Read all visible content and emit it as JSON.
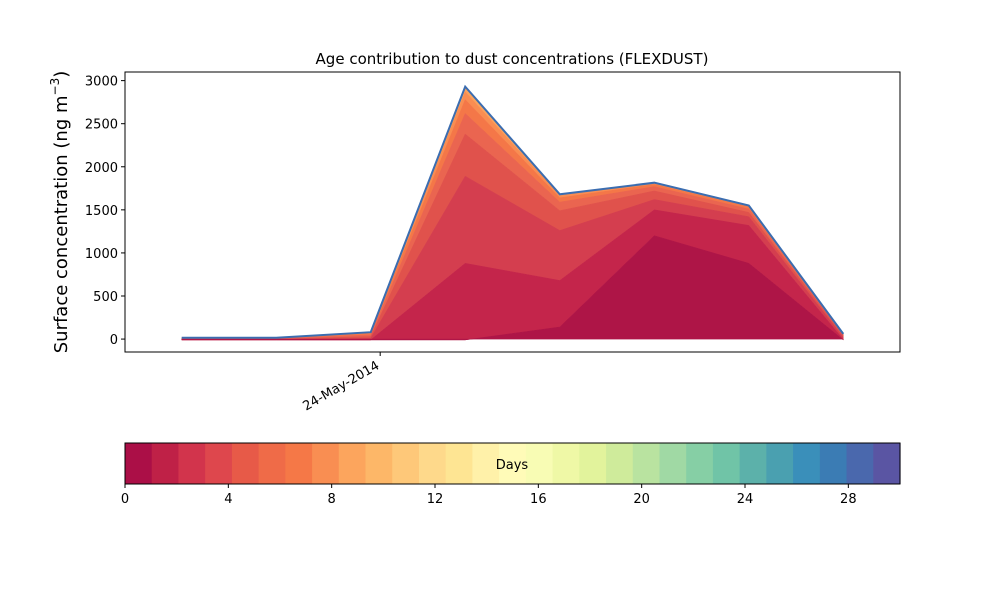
{
  "chart_data": {
    "type": "area",
    "title": "Age contribution to dust concentrations (FLEXDUST)",
    "ylabel_main": "Surface concentration (ng m",
    "ylabel_exp": "−3",
    "ylabel_close": ")",
    "xlabel": "",
    "ylim": [
      -150,
      3100
    ],
    "yticks": [
      0,
      500,
      1000,
      1500,
      2000,
      2500,
      3000
    ],
    "x_index_range": [
      -0.6,
      7.6
    ],
    "x_points": [
      0,
      1,
      2,
      3,
      4,
      5,
      6,
      7
    ],
    "xtick": {
      "label": "24-May-2014",
      "position": 2.1
    },
    "series_cumulative": [
      {
        "age_days": "0-1",
        "color": "#ae1547",
        "values": [
          -10,
          -10,
          -10,
          -10,
          140,
          1200,
          880,
          -10
        ]
      },
      {
        "age_days": "1-2",
        "color": "#c4254b",
        "values": [
          -10,
          -10,
          -10,
          880,
          680,
          1500,
          1320,
          -5
        ]
      },
      {
        "age_days": "2-3",
        "color": "#d43e4f",
        "values": [
          -5,
          -5,
          10,
          1890,
          1260,
          1620,
          1420,
          20
        ]
      },
      {
        "age_days": "3-4",
        "color": "#e0524c",
        "values": [
          0,
          0,
          30,
          2380,
          1490,
          1720,
          1470,
          40
        ]
      },
      {
        "age_days": "4-5",
        "color": "#ea6550",
        "values": [
          5,
          5,
          50,
          2620,
          1590,
          1770,
          1510,
          50
        ]
      },
      {
        "age_days": "5-6",
        "color": "#f47748",
        "values": [
          10,
          10,
          65,
          2780,
          1640,
          1795,
          1535,
          55
        ]
      },
      {
        "age_days": "6-7",
        "color": "#f98d52",
        "values": [
          12,
          12,
          72,
          2870,
          1665,
          1805,
          1545,
          58
        ]
      },
      {
        "age_days": "7+",
        "color": "#fba35c",
        "values": [
          15,
          15,
          80,
          2930,
          1680,
          1815,
          1550,
          60
        ]
      }
    ],
    "total_line_color": "#3b6db0",
    "colorbar": {
      "label": "Days",
      "min": 0,
      "max": 30,
      "ticks": [
        0,
        4,
        8,
        12,
        16,
        20,
        24,
        28
      ],
      "colors": [
        "#ab0f47",
        "#bf2147",
        "#d2344c",
        "#de474d",
        "#e75a48",
        "#ef6b48",
        "#f57847",
        "#f98e52",
        "#fca55d",
        "#fdb768",
        "#fec879",
        "#fed98b",
        "#fee593",
        "#fff1a9",
        "#fffbb8",
        "#f8fcb4",
        "#eff8a6",
        "#e2f39c",
        "#cfeb9b",
        "#b9e3a0",
        "#a0d9a4",
        "#86cfa5",
        "#70c4a7",
        "#5cb1aa",
        "#4aa0b0",
        "#3a8fba",
        "#3b7cb4",
        "#4a68ad",
        "#5a55a3"
      ]
    }
  }
}
